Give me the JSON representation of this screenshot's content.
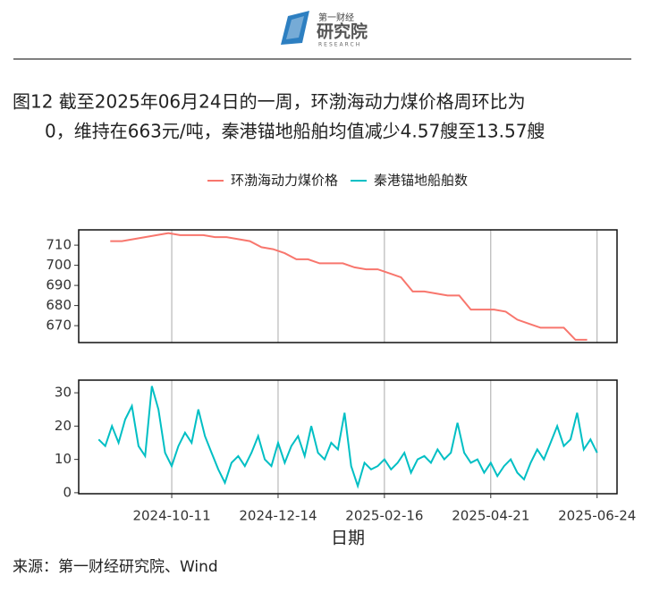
{
  "header": {
    "logo_top": "第一财经",
    "logo_main": "研究院",
    "logo_sub": "RESEARCH"
  },
  "title": [
    "图12  截至2025年06月24日的一周，环渤海动力煤价格周环比为",
    "0，维持在663元/吨，秦港锚地船舶均值减少4.57艘至13.57艘"
  ],
  "source": "来源：第一财经研究院、Wind",
  "chart_data": [
    {
      "type": "line",
      "x": [
        "2024-09-04",
        "2024-09-11",
        "2024-09-18",
        "2024-09-25",
        "2024-10-02",
        "2024-10-09",
        "2024-10-16",
        "2024-10-23",
        "2024-10-30",
        "2024-11-06",
        "2024-11-13",
        "2024-11-20",
        "2024-11-27",
        "2024-12-04",
        "2024-12-11",
        "2024-12-18",
        "2024-12-25",
        "2025-01-01",
        "2025-01-08",
        "2025-01-15",
        "2025-01-22",
        "2025-01-29",
        "2025-02-05",
        "2025-02-12",
        "2025-02-19",
        "2025-02-26",
        "2025-03-05",
        "2025-03-12",
        "2025-03-19",
        "2025-03-26",
        "2025-04-02",
        "2025-04-09",
        "2025-04-16",
        "2025-04-23",
        "2025-04-30",
        "2025-05-07",
        "2025-05-14",
        "2025-05-21",
        "2025-05-28",
        "2025-06-04",
        "2025-06-11",
        "2025-06-18"
      ],
      "series": [
        {
          "name": "环渤海动力煤价格",
          "color": "#f8766d",
          "values": [
            712,
            712,
            713,
            714,
            715,
            716,
            715,
            715,
            715,
            714,
            714,
            713,
            712,
            709,
            708,
            706,
            703,
            703,
            701,
            701,
            701,
            699,
            698,
            698,
            696,
            694,
            687,
            687,
            686,
            685,
            685,
            678,
            678,
            678,
            677,
            673,
            671,
            669,
            669,
            669,
            663,
            663
          ]
        }
      ],
      "xlim": [
        "2024-08-16",
        "2025-07-06"
      ],
      "xticks": [
        "2024-10-11",
        "2024-12-14",
        "2025-02-16",
        "2025-04-21",
        "2025-06-24"
      ],
      "ylim": [
        661.6,
        717.6
      ],
      "yticks": [
        670,
        680,
        690,
        700,
        710
      ],
      "grid": "x"
    },
    {
      "type": "line",
      "x": [
        "2024-08-28",
        "2024-09-01",
        "2024-09-05",
        "2024-09-09",
        "2024-09-13",
        "2024-09-17",
        "2024-09-21",
        "2024-09-25",
        "2024-09-29",
        "2024-10-03",
        "2024-10-07",
        "2024-10-11",
        "2024-10-15",
        "2024-10-19",
        "2024-10-23",
        "2024-10-27",
        "2024-10-31",
        "2024-11-04",
        "2024-11-08",
        "2024-11-12",
        "2024-11-16",
        "2024-11-20",
        "2024-11-24",
        "2024-11-28",
        "2024-12-02",
        "2024-12-06",
        "2024-12-10",
        "2024-12-14",
        "2024-12-18",
        "2024-12-22",
        "2024-12-26",
        "2024-12-30",
        "2025-01-03",
        "2025-01-07",
        "2025-01-11",
        "2025-01-15",
        "2025-01-19",
        "2025-01-23",
        "2025-01-27",
        "2025-01-31",
        "2025-02-04",
        "2025-02-08",
        "2025-02-12",
        "2025-02-16",
        "2025-02-20",
        "2025-02-24",
        "2025-02-28",
        "2025-03-04",
        "2025-03-08",
        "2025-03-12",
        "2025-03-16",
        "2025-03-20",
        "2025-03-24",
        "2025-03-28",
        "2025-04-01",
        "2025-04-05",
        "2025-04-09",
        "2025-04-13",
        "2025-04-17",
        "2025-04-21",
        "2025-04-25",
        "2025-04-29",
        "2025-05-03",
        "2025-05-07",
        "2025-05-11",
        "2025-05-15",
        "2025-05-19",
        "2025-05-23",
        "2025-05-27",
        "2025-05-31",
        "2025-06-04",
        "2025-06-08",
        "2025-06-12",
        "2025-06-16",
        "2025-06-20",
        "2025-06-24"
      ],
      "series": [
        {
          "name": "秦港锚地船舶数",
          "color": "#00bfc4",
          "values": [
            16,
            14,
            20,
            15,
            22,
            26,
            14,
            11,
            32,
            25,
            12,
            8,
            14,
            18,
            15,
            25,
            17,
            12,
            7,
            3,
            9,
            11,
            8,
            12,
            17,
            10,
            8,
            15,
            9,
            14,
            17,
            11,
            20,
            12,
            10,
            15,
            13,
            24,
            8,
            2,
            9,
            7,
            8,
            10,
            7,
            9,
            12,
            6,
            10,
            11,
            9,
            13,
            10,
            12,
            21,
            12,
            9,
            10,
            6,
            9,
            5,
            8,
            10,
            6,
            4,
            9,
            13,
            10,
            15,
            20,
            14,
            16,
            24,
            13,
            16,
            12
          ]
        }
      ],
      "xlim": [
        "2024-08-16",
        "2025-07-06"
      ],
      "xticks": [
        "2024-10-11",
        "2024-12-14",
        "2025-02-16",
        "2025-04-21",
        "2025-06-24"
      ],
      "ylim": [
        -0.3,
        33.8
      ],
      "yticks": [
        0,
        10,
        20,
        30
      ],
      "grid": "x",
      "xlabel": "日期"
    }
  ]
}
